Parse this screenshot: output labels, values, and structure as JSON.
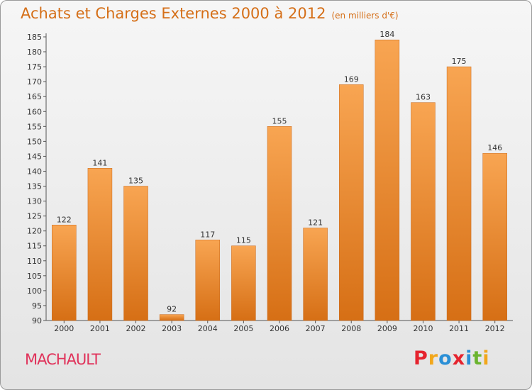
{
  "title": "Achats et Charges Externes 2000 à 2012",
  "unit": "(en milliers d'€)",
  "commune": "MACHAULT",
  "logo": {
    "letters": [
      {
        "ch": "P",
        "color": "#e5232e"
      },
      {
        "ch": "r",
        "color": "#f2a71b"
      },
      {
        "ch": "o",
        "color": "#2a8fd6"
      },
      {
        "ch": "x",
        "color": "#e5232e"
      },
      {
        "ch": "i",
        "color": "#2a8fd6"
      },
      {
        "ch": "t",
        "color": "#6bb42f"
      },
      {
        "ch": "i",
        "color": "#f2a71b"
      }
    ]
  },
  "chart_data": {
    "type": "bar",
    "categories": [
      "2000",
      "2001",
      "2002",
      "2003",
      "2004",
      "2005",
      "2006",
      "2007",
      "2008",
      "2009",
      "2010",
      "2011",
      "2012"
    ],
    "values": [
      122,
      141,
      135,
      92,
      117,
      115,
      155,
      121,
      169,
      184,
      163,
      175,
      146
    ],
    "title": "Achats et Charges Externes 2000 à 2012",
    "xlabel": "",
    "ylabel": "",
    "ylim": [
      90,
      185
    ],
    "yticks": [
      90,
      95,
      100,
      105,
      110,
      115,
      120,
      125,
      130,
      135,
      140,
      145,
      150,
      155,
      160,
      165,
      170,
      175,
      180,
      185
    ],
    "grid": false,
    "data_labels": true,
    "colors": {
      "bar_light": "#f8a552",
      "bar_dark": "#d66f15",
      "axis": "#555555",
      "text": "#333333"
    }
  }
}
